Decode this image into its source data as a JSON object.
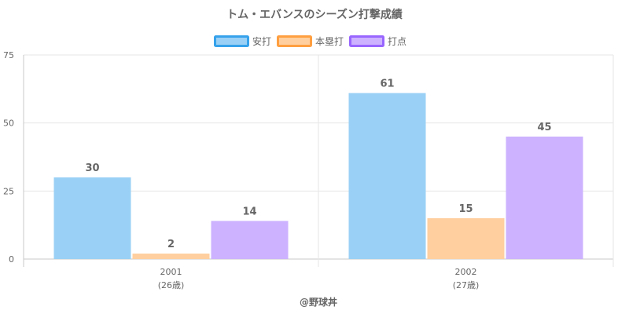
{
  "chart_data": {
    "type": "bar",
    "title": "トム・エバンスのシーズン打撃成績",
    "categories": [
      {
        "year": "2001",
        "age": "(26歳)"
      },
      {
        "year": "2002",
        "age": "(27歳)"
      }
    ],
    "series": [
      {
        "name": "安打",
        "values": [
          30,
          61
        ],
        "color": "#9ad0f5",
        "border": "#36a2eb"
      },
      {
        "name": "本塁打",
        "values": [
          2,
          15
        ],
        "color": "#ffcf9f",
        "border": "#ff9f40"
      },
      {
        "name": "打点",
        "values": [
          14,
          45
        ],
        "color": "#ccb2ff",
        "border": "#9966ff"
      }
    ],
    "ylim": [
      0,
      75
    ],
    "yticks": [
      "0",
      "25",
      "50",
      "75"
    ],
    "grid": true,
    "legend_position": "top"
  },
  "credit": "@野球丼"
}
